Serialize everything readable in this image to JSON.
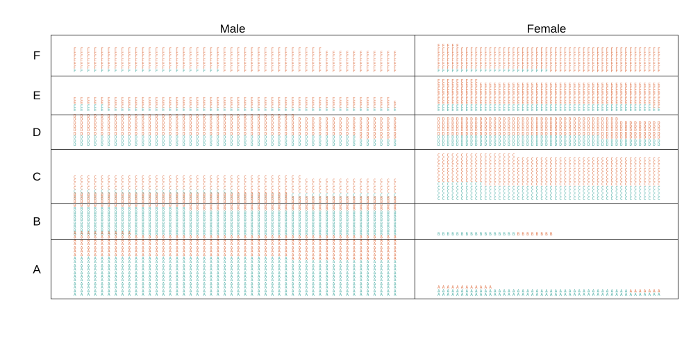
{
  "chart_data": {
    "type": "pictogram",
    "title": "",
    "columns": [
      "Male",
      "Female"
    ],
    "rows": [
      "F",
      "E",
      "D",
      "C",
      "B",
      "A"
    ],
    "series_colors": [
      "#5ab4ac",
      "#e07a50"
    ],
    "glyph_spec": {
      "columns_per_row": 48
    },
    "cells": [
      {
        "row": "F",
        "col": "Male",
        "counts": [
          22,
          303
        ]
      },
      {
        "row": "F",
        "col": "Female",
        "counts": [
          24,
          317
        ]
      },
      {
        "row": "E",
        "col": "Male",
        "counts": [
          53,
          138
        ]
      },
      {
        "row": "E",
        "col": "Female",
        "counts": [
          94,
          299
        ]
      },
      {
        "row": "D",
        "col": "Male",
        "counts": [
          138,
          279
        ]
      },
      {
        "row": "D",
        "col": "Female",
        "counts": [
          131,
          244
        ]
      },
      {
        "row": "C",
        "col": "Male",
        "counts": [
          120,
          202
        ]
      },
      {
        "row": "C",
        "col": "Female",
        "counts": [
          202,
          391
        ]
      },
      {
        "row": "B",
        "col": "Male",
        "counts": [
          353,
          207
        ]
      },
      {
        "row": "B",
        "col": "Female",
        "counts": [
          17,
          8
        ]
      },
      {
        "row": "A",
        "col": "Male",
        "counts": [
          512,
          313
        ]
      },
      {
        "row": "A",
        "col": "Female",
        "counts": [
          89,
          19
        ]
      }
    ]
  }
}
